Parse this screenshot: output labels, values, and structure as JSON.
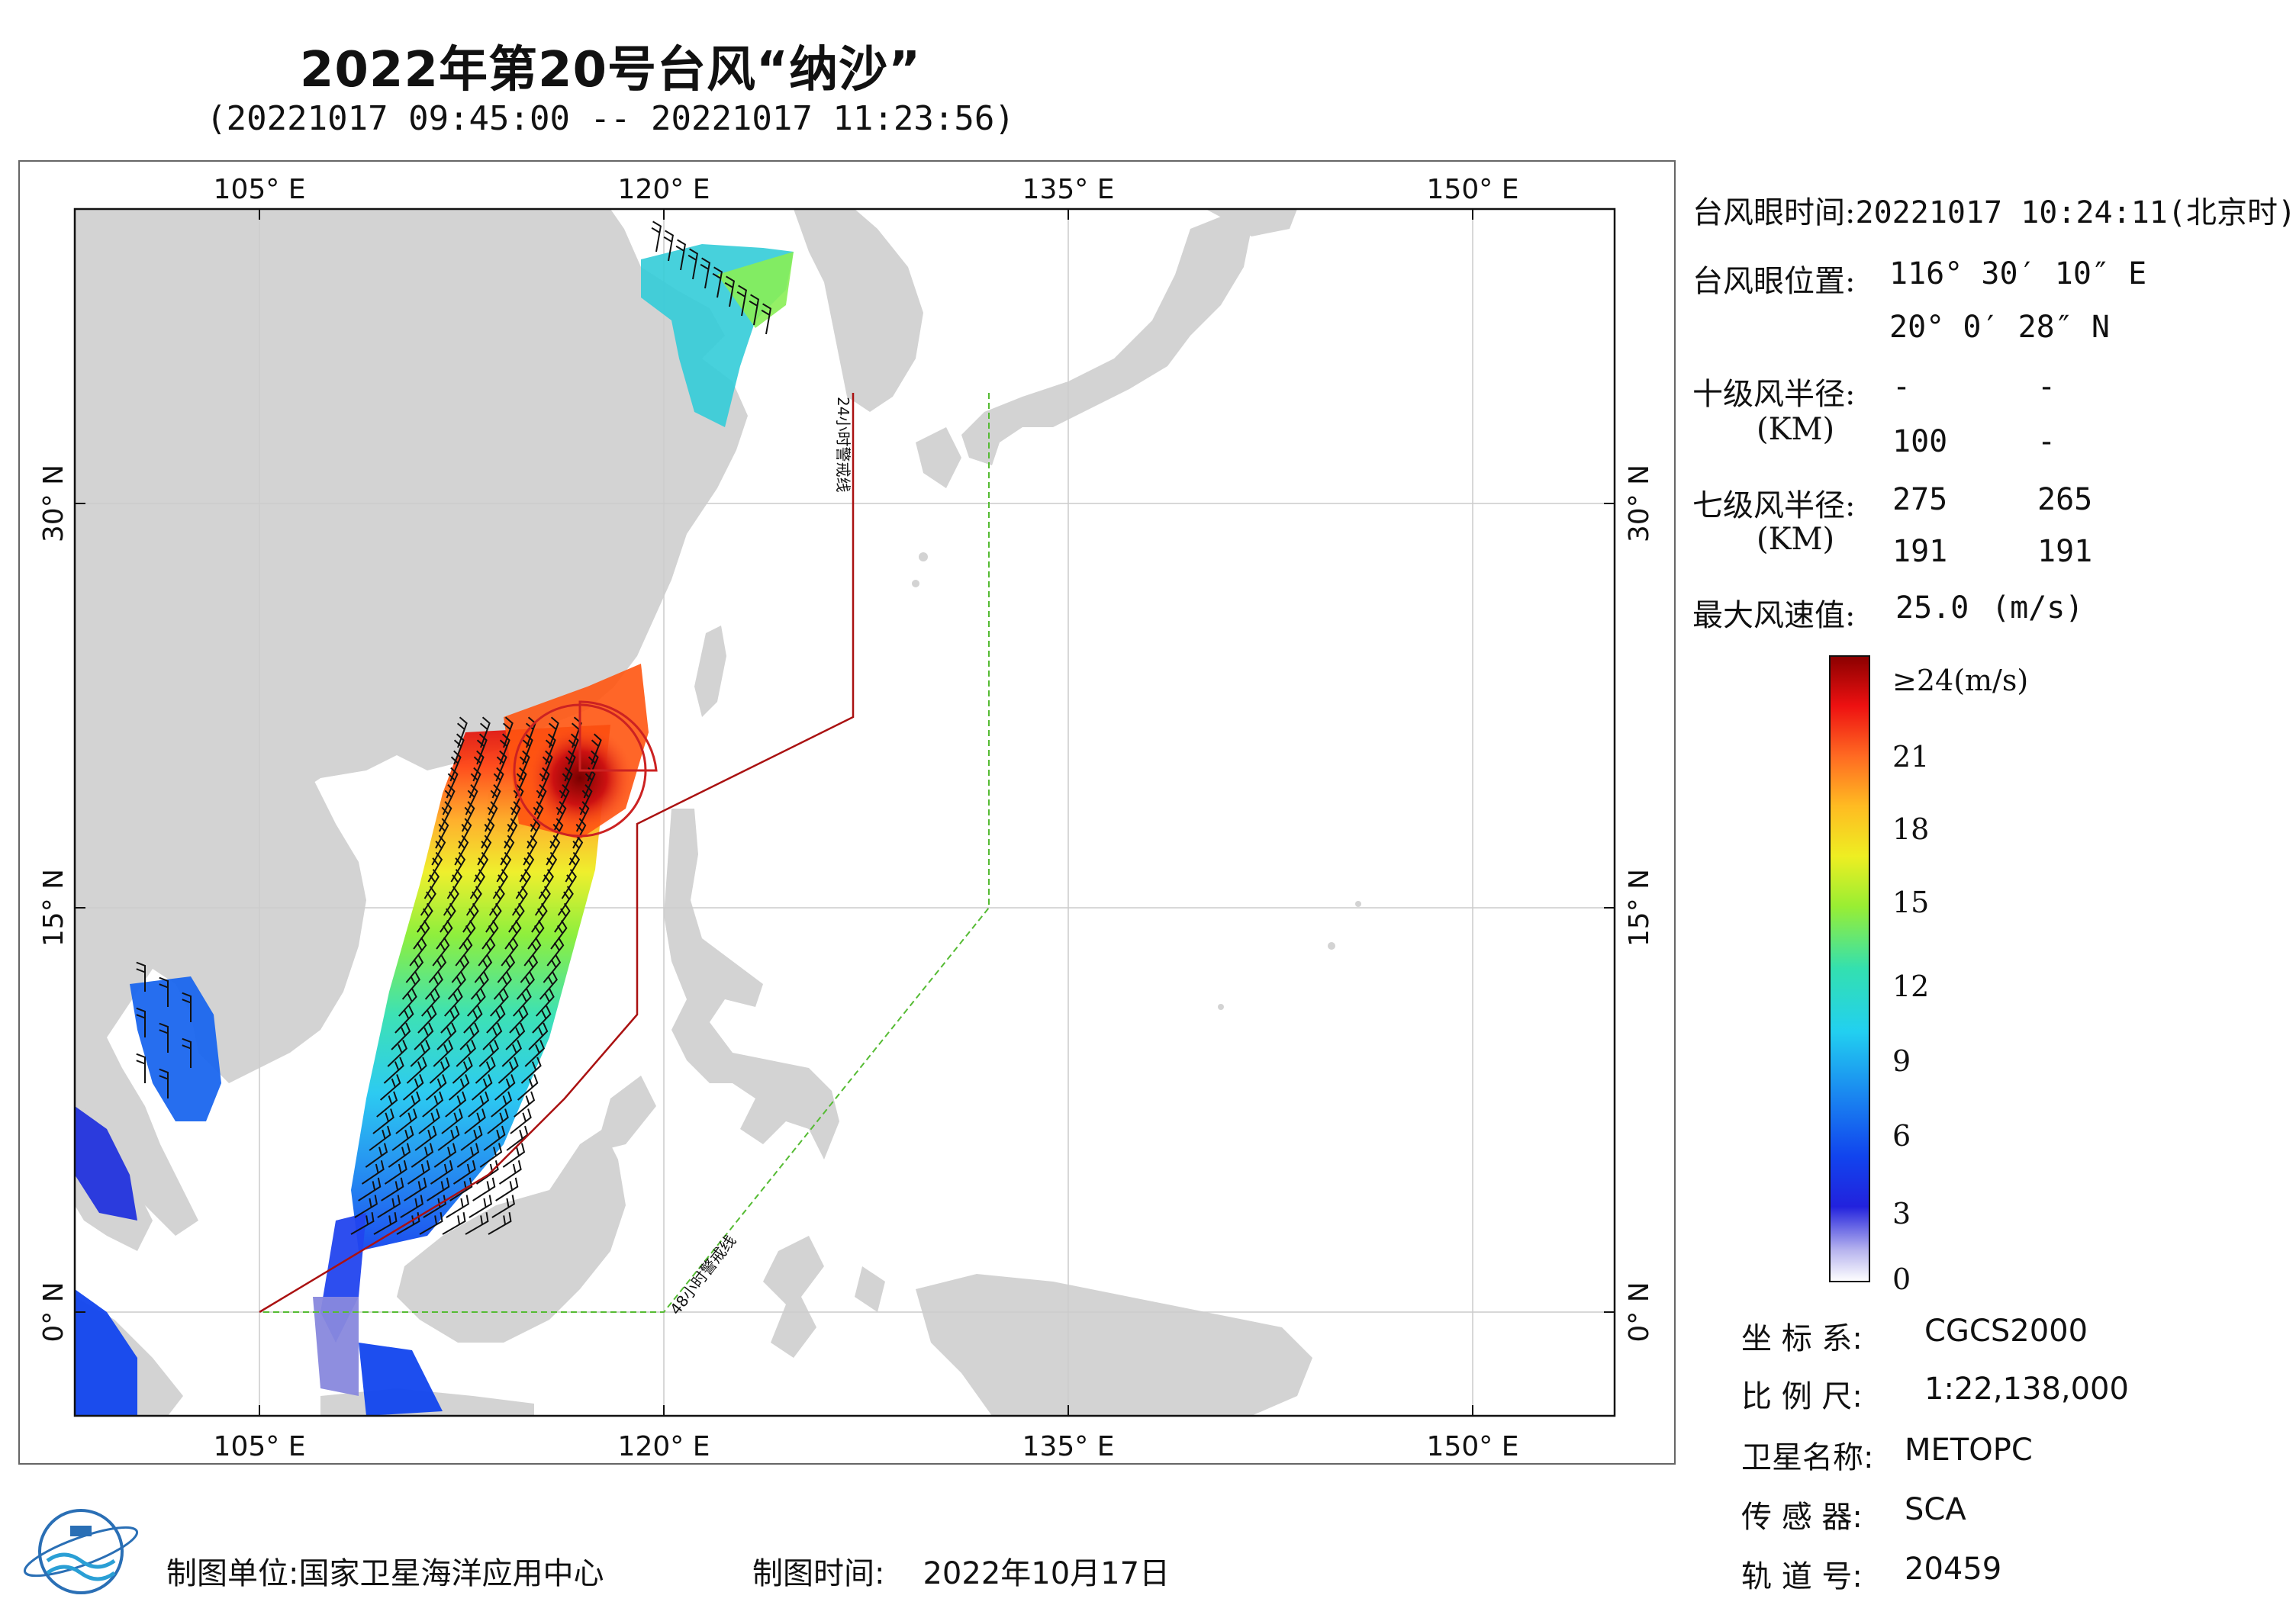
{
  "header": {
    "title": "2022年第20号台风“纳沙”",
    "subtitle": "(20221017 09:45:00 -- 20221017 11:23:56)"
  },
  "map": {
    "lon_ticks": [
      "105° E",
      "120° E",
      "135° E",
      "150° E"
    ],
    "lat_ticks": [
      "30° N",
      "15° N",
      "0° N"
    ],
    "warning_line_24": "24小时警戒线",
    "warning_line_48": "48小时警戒线",
    "colors": {
      "land": "#d3d3d3",
      "sea": "#ffffff",
      "line_24h": "#aa1111",
      "line_48h": "#55bb33"
    }
  },
  "info": {
    "eye_time_label": "台风眼时间:",
    "eye_time_value": "20221017 10:24:11(北京时)",
    "eye_pos_label": "台风眼位置:",
    "eye_lon": "116° 30′ 10″ E",
    "eye_lat": "20° 0′ 28″ N",
    "r10_label": "十级风半径:",
    "r10_unit": "(KM)",
    "r10_values": [
      "-",
      "-",
      "100",
      "-"
    ],
    "r7_label": "七级风半径:",
    "r7_unit": "(KM)",
    "r7_values": [
      "275",
      "265",
      "191",
      "191"
    ],
    "max_wind_label": "最大风速值:",
    "max_wind_value": "25.0",
    "max_wind_unit": "(m/s)"
  },
  "colorbar": {
    "top_label": "≥24(m/s)",
    "labels": [
      "21",
      "18",
      "15",
      "12",
      "9",
      "6",
      "3",
      "0"
    ]
  },
  "meta": {
    "crs_label": "坐 标 系:",
    "crs_value": "CGCS2000",
    "scale_label": "比 例 尺:",
    "scale_value": "1:22,138,000",
    "sat_label": "卫星名称:",
    "sat_value": "METOPC",
    "sensor_label": "传 感 器:",
    "sensor_value": "SCA",
    "orbit_label": "轨 道 号:",
    "orbit_value": "20459"
  },
  "footer": {
    "producer_label": "制图单位:",
    "producer_value": "国家卫星海洋应用中心",
    "date_label": "制图时间:",
    "date_value": "2022年10月17日"
  }
}
